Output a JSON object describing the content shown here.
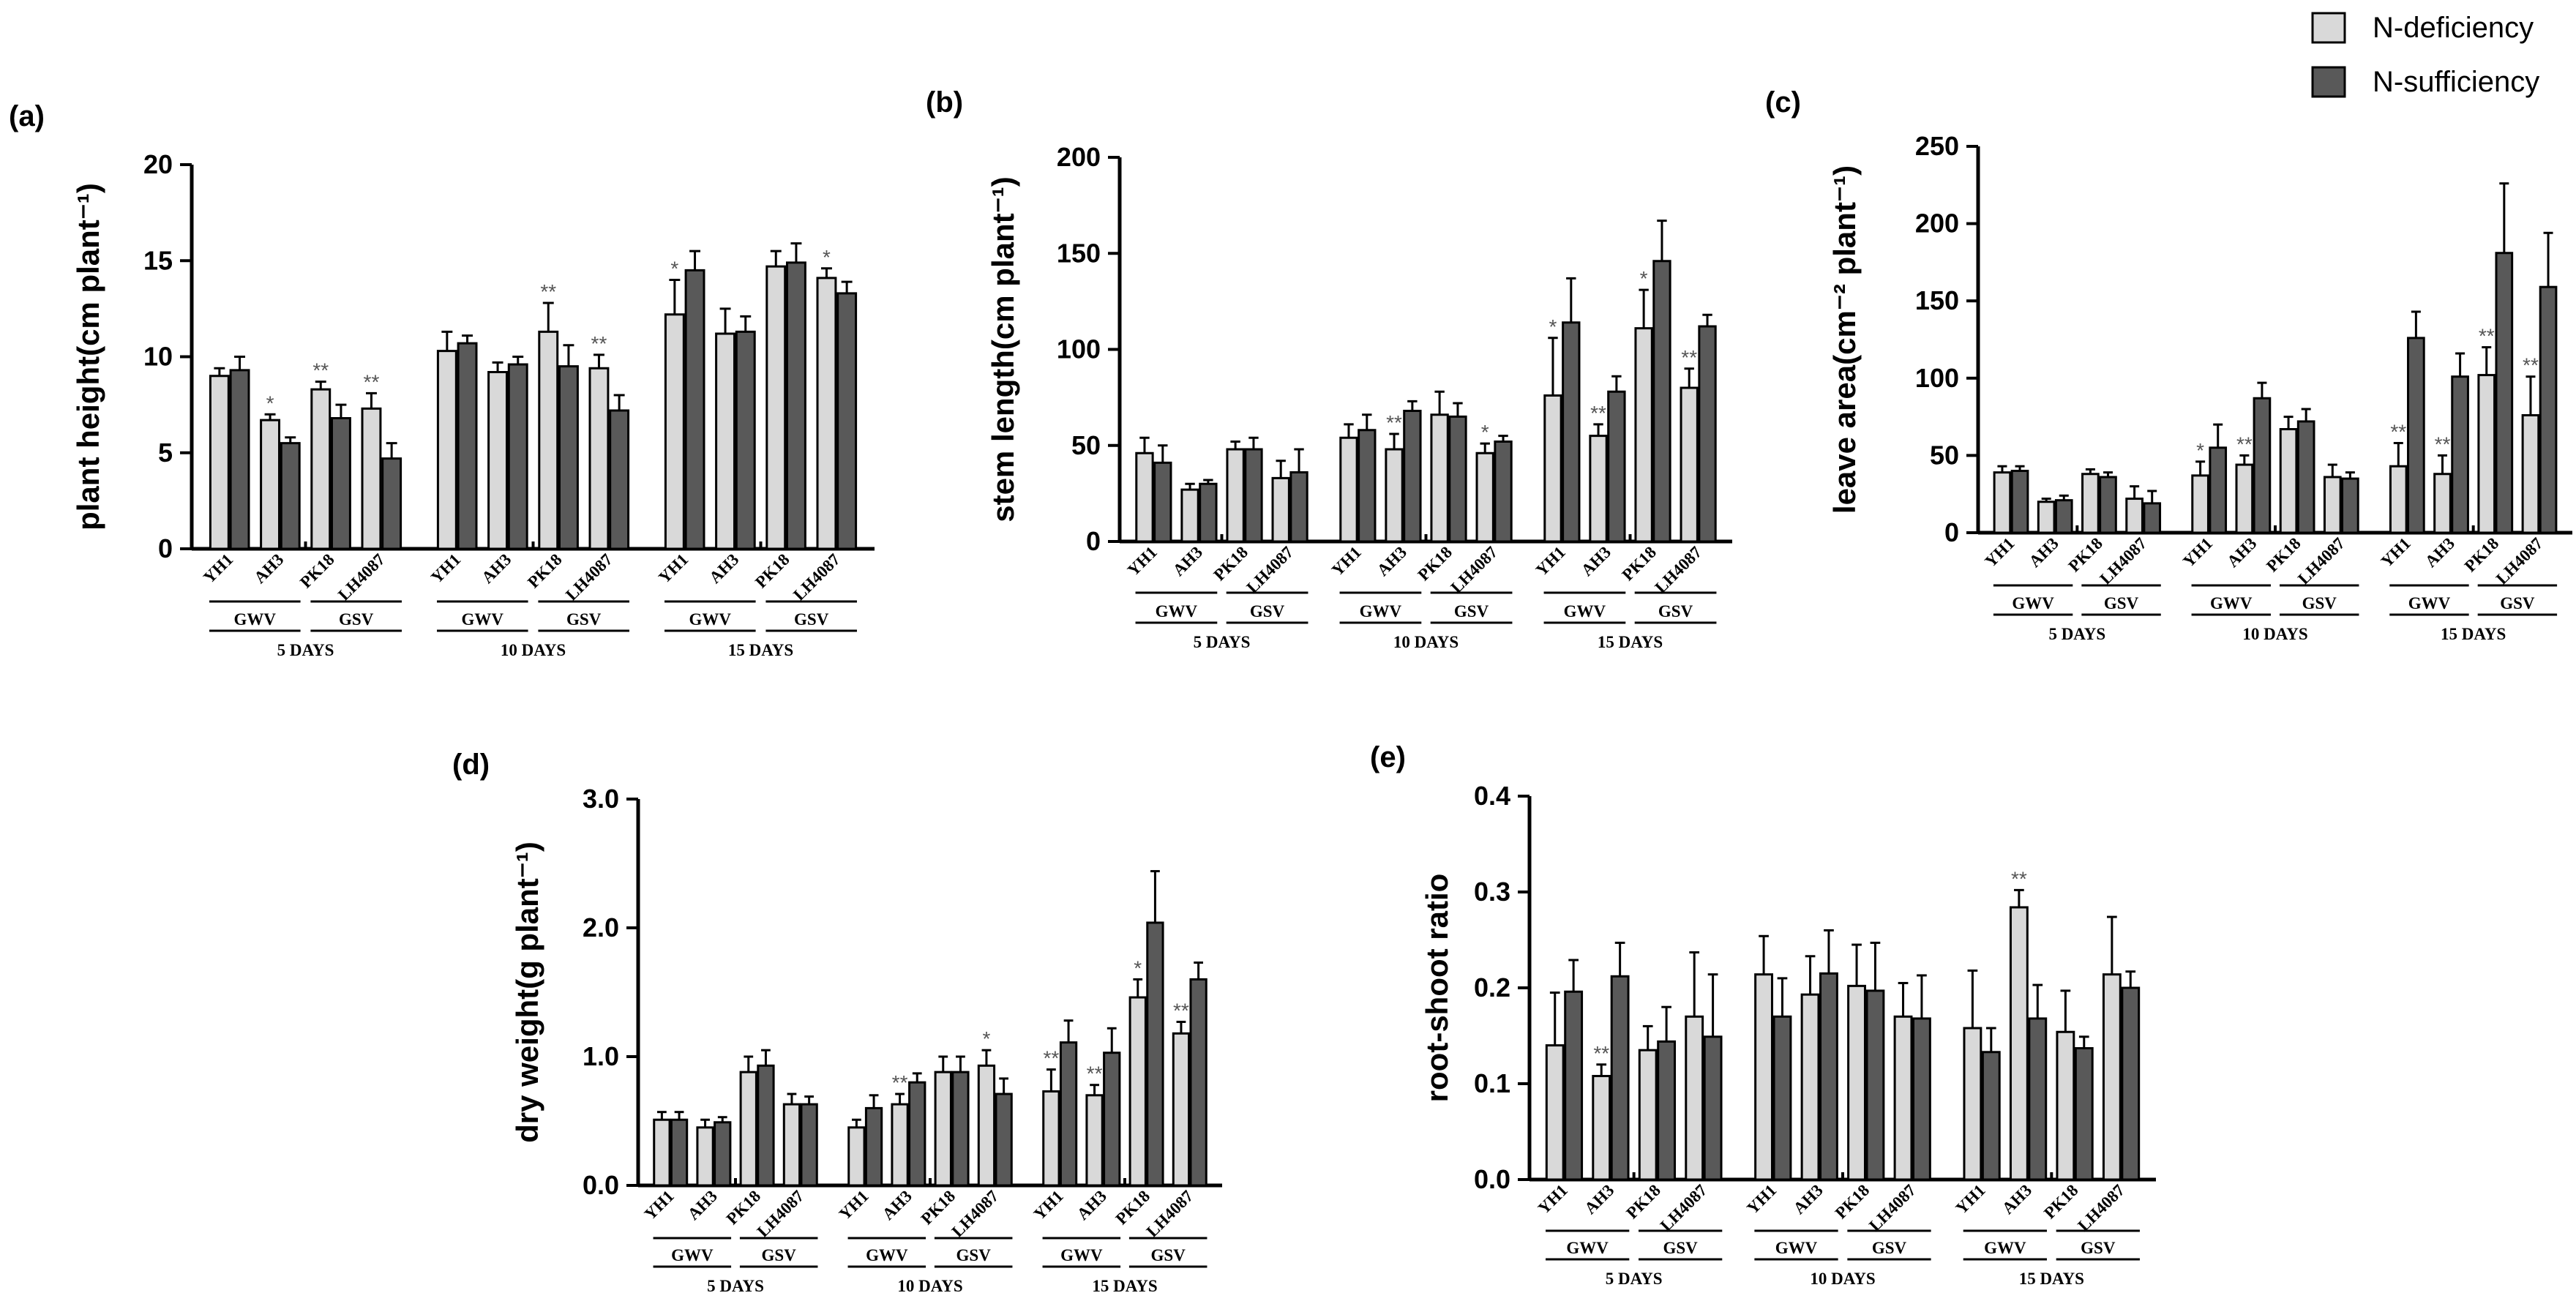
{
  "legend": {
    "items": [
      {
        "label": "N-deficiency",
        "color": "#d9d9d9"
      },
      {
        "label": "N-sufficiency",
        "color": "#595959"
      }
    ]
  },
  "x_structure": {
    "categories": [
      "YH1",
      "AH3",
      "PK18",
      "LH4087"
    ],
    "groups": [
      {
        "label": "GWV",
        "categories": [
          "YH1",
          "AH3"
        ]
      },
      {
        "label": "GSV",
        "categories": [
          "PK18",
          "LH4087"
        ]
      }
    ],
    "days": [
      "5 DAYS",
      "10 DAYS",
      "15 DAYS"
    ]
  },
  "chart_data": [
    {
      "panel": "(a)",
      "type": "bar",
      "ylabel": "plant height(cm plant⁻¹)",
      "ylim": [
        0,
        20
      ],
      "yticks": [
        "0",
        "5",
        "10",
        "15",
        "20"
      ],
      "categories": [
        "YH1",
        "AH3",
        "PK18",
        "LH4087"
      ],
      "days": [
        "5 DAYS",
        "10 DAYS",
        "15 DAYS"
      ],
      "series": [
        {
          "name": "N-deficiency",
          "values": [
            [
              9.0,
              6.7,
              8.3,
              7.3
            ],
            [
              10.3,
              9.2,
              11.3,
              9.4
            ],
            [
              12.2,
              11.2,
              14.7,
              14.1
            ]
          ],
          "errors": [
            [
              0.4,
              0.3,
              0.4,
              0.8
            ],
            [
              1.0,
              0.5,
              1.5,
              0.7
            ],
            [
              1.8,
              1.3,
              0.8,
              0.5
            ]
          ],
          "sig": [
            [
              "",
              "*",
              "**",
              "**"
            ],
            [
              "",
              "",
              "**",
              "**"
            ],
            [
              "*",
              "",
              "",
              "*"
            ]
          ]
        },
        {
          "name": "N-sufficiency",
          "values": [
            [
              9.3,
              5.5,
              6.8,
              4.7
            ],
            [
              10.7,
              9.6,
              9.5,
              7.2
            ],
            [
              14.5,
              11.3,
              14.9,
              13.3
            ]
          ],
          "errors": [
            [
              0.7,
              0.3,
              0.7,
              0.8
            ],
            [
              0.4,
              0.4,
              1.1,
              0.8
            ],
            [
              1.0,
              0.8,
              1.0,
              0.6
            ]
          ]
        }
      ]
    },
    {
      "panel": "(b)",
      "type": "bar",
      "ylabel": "stem length(cm plant⁻¹)",
      "ylim": [
        0,
        200
      ],
      "yticks": [
        "0",
        "50",
        "100",
        "150",
        "200"
      ],
      "categories": [
        "YH1",
        "AH3",
        "PK18",
        "LH4087"
      ],
      "days": [
        "5 DAYS",
        "10 DAYS",
        "15 DAYS"
      ],
      "series": [
        {
          "name": "N-deficiency",
          "values": [
            [
              46,
              27,
              48,
              33
            ],
            [
              54,
              48,
              66,
              46
            ],
            [
              76,
              55,
              111,
              80
            ]
          ],
          "errors": [
            [
              8,
              3,
              4,
              9
            ],
            [
              7,
              8,
              12,
              5
            ],
            [
              30,
              6,
              20,
              10
            ]
          ],
          "sig": [
            [
              "",
              "",
              "",
              ""
            ],
            [
              "",
              "**",
              "",
              "*"
            ],
            [
              "*",
              "**",
              "*",
              "**"
            ]
          ]
        },
        {
          "name": "N-sufficiency",
          "values": [
            [
              41,
              30,
              48,
              36
            ],
            [
              58,
              68,
              65,
              52
            ],
            [
              114,
              78,
              146,
              112
            ]
          ],
          "errors": [
            [
              9,
              2,
              6,
              12
            ],
            [
              8,
              5,
              7,
              3
            ],
            [
              23,
              8,
              21,
              6
            ]
          ]
        }
      ]
    },
    {
      "panel": "(c)",
      "type": "bar",
      "ylabel": "leave area(cm⁻² plant⁻¹)",
      "ylim": [
        0,
        250
      ],
      "yticks": [
        "0",
        "50",
        "100",
        "150",
        "200",
        "250"
      ],
      "categories": [
        "YH1",
        "AH3",
        "PK18",
        "LH4087"
      ],
      "days": [
        "5 DAYS",
        "10 DAYS",
        "15 DAYS"
      ],
      "series": [
        {
          "name": "N-deficiency",
          "values": [
            [
              39,
              20,
              38,
              22
            ],
            [
              37,
              44,
              67,
              36
            ],
            [
              43,
              38,
              102,
              76
            ]
          ],
          "errors": [
            [
              4,
              2,
              3,
              8
            ],
            [
              9,
              6,
              8,
              8
            ],
            [
              15,
              12,
              18,
              25
            ]
          ],
          "sig": [
            [
              "",
              "",
              "",
              ""
            ],
            [
              "*",
              "**",
              "",
              ""
            ],
            [
              "**",
              "**",
              "**",
              "**"
            ]
          ]
        },
        {
          "name": "N-sufficiency",
          "values": [
            [
              40,
              21,
              36,
              19
            ],
            [
              55,
              87,
              72,
              35
            ],
            [
              126,
              101,
              181,
              159
            ]
          ],
          "errors": [
            [
              3,
              3,
              3,
              8
            ],
            [
              15,
              10,
              8,
              4
            ],
            [
              17,
              15,
              45,
              35
            ]
          ]
        }
      ]
    },
    {
      "panel": "(d)",
      "type": "bar",
      "ylabel": "dry weight(g plant⁻¹)",
      "ylim": [
        0,
        3.0
      ],
      "yticks": [
        "0.0",
        "1.0",
        "2.0",
        "3.0"
      ],
      "categories": [
        "YH1",
        "AH3",
        "PK18",
        "LH4087"
      ],
      "days": [
        "5 DAYS",
        "10 DAYS",
        "15 DAYS"
      ],
      "series": [
        {
          "name": "N-deficiency",
          "values": [
            [
              0.51,
              0.45,
              0.88,
              0.63
            ],
            [
              0.45,
              0.63,
              0.88,
              0.93
            ],
            [
              0.73,
              0.7,
              1.46,
              1.18
            ]
          ],
          "errors": [
            [
              0.06,
              0.06,
              0.12,
              0.08
            ],
            [
              0.06,
              0.08,
              0.12,
              0.12
            ],
            [
              0.17,
              0.08,
              0.14,
              0.09
            ]
          ],
          "sig": [
            [
              "",
              "",
              "",
              ""
            ],
            [
              "",
              "**",
              "",
              "*"
            ],
            [
              "**",
              "**",
              "*",
              "**"
            ]
          ]
        },
        {
          "name": "N-sufficiency",
          "values": [
            [
              0.51,
              0.49,
              0.93,
              0.63
            ],
            [
              0.6,
              0.8,
              0.88,
              0.71
            ],
            [
              1.11,
              1.03,
              2.04,
              1.6
            ]
          ],
          "errors": [
            [
              0.06,
              0.04,
              0.12,
              0.06
            ],
            [
              0.1,
              0.07,
              0.12,
              0.12
            ],
            [
              0.17,
              0.19,
              0.4,
              0.13
            ]
          ]
        }
      ]
    },
    {
      "panel": "(e)",
      "type": "bar",
      "ylabel": "root-shoot ratio",
      "ylim": [
        0,
        0.4
      ],
      "yticks": [
        "0.0",
        "0.1",
        "0.2",
        "0.3",
        "0.4"
      ],
      "categories": [
        "YH1",
        "AH3",
        "PK18",
        "LH4087"
      ],
      "days": [
        "5 DAYS",
        "10 DAYS",
        "15 DAYS"
      ],
      "series": [
        {
          "name": "N-deficiency",
          "values": [
            [
              0.14,
              0.108,
              0.135,
              0.17
            ],
            [
              0.214,
              0.193,
              0.202,
              0.17
            ],
            [
              0.158,
              0.284,
              0.154,
              0.214
            ]
          ],
          "errors": [
            [
              0.055,
              0.012,
              0.025,
              0.067
            ],
            [
              0.04,
              0.04,
              0.043,
              0.035
            ],
            [
              0.06,
              0.018,
              0.043,
              0.06
            ]
          ],
          "sig": [
            [
              "",
              "**",
              "",
              ""
            ],
            [
              "",
              "",
              "",
              ""
            ],
            [
              "",
              "**",
              "",
              ""
            ]
          ]
        },
        {
          "name": "N-sufficiency",
          "values": [
            [
              0.196,
              0.212,
              0.144,
              0.149
            ],
            [
              0.17,
              0.215,
              0.197,
              0.168
            ],
            [
              0.133,
              0.168,
              0.137,
              0.2
            ]
          ],
          "errors": [
            [
              0.033,
              0.035,
              0.036,
              0.065
            ],
            [
              0.04,
              0.045,
              0.05,
              0.045
            ],
            [
              0.025,
              0.035,
              0.012,
              0.017
            ]
          ]
        }
      ]
    }
  ]
}
